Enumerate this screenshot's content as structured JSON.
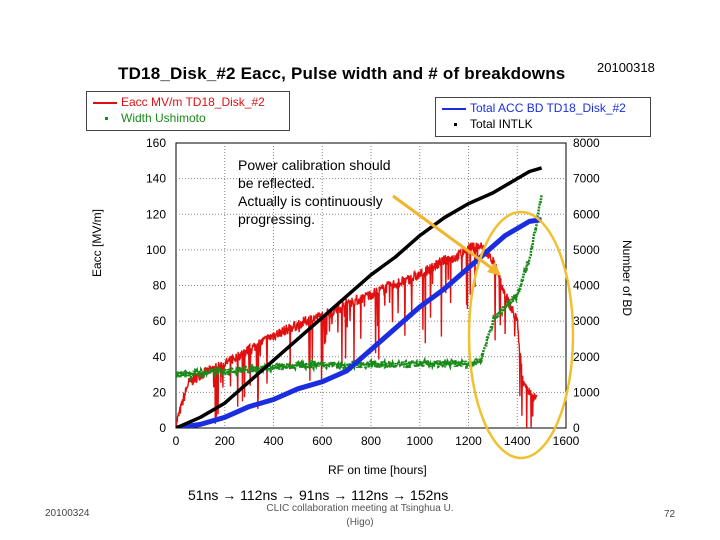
{
  "slide": {
    "title": "TD18_Disk_#2  Eacc, Pulse width and # of breakdowns",
    "date_stamp": "20100318",
    "note": "Power calibration should\nbe reflected.\nActually is continuously\nprogressing.",
    "pulse_sequence": "51ns    →    112ns → 91ns → 112ns → 152ns",
    "footer_date": "20100324",
    "footer_center": "CLIC collaboration meeting at Tsinghua U. (Higo)",
    "page_number": "72"
  },
  "chart_data": {
    "type": "scatter",
    "xlabel": "RF on time [hours]",
    "ylabel_left": "Eacc [MV/m]",
    "ylabel_right": "Number of BD",
    "xlim": [
      0,
      1600
    ],
    "ylim_left": [
      0,
      160
    ],
    "ylim_right": [
      0,
      8000
    ],
    "x_ticks": [
      "0",
      "200",
      "400",
      "600",
      "800",
      "1000",
      "1200",
      "1400",
      "1600"
    ],
    "y_ticks_left": [
      "0",
      "20",
      "40",
      "60",
      "80",
      "100",
      "120",
      "140",
      "160"
    ],
    "y_ticks_right": [
      "0",
      "1000",
      "2000",
      "3000",
      "4000",
      "5000",
      "6000",
      "7000",
      "8000"
    ],
    "grid": true,
    "legend_left": [
      {
        "name": "Eacc MV/m  TD18_Disk_#2",
        "color": "#e01010"
      },
      {
        "name": "Width Ushimoto",
        "color": "#1a8a1a"
      }
    ],
    "legend_right": [
      {
        "name": "Total ACC BD TD18_Disk_#2",
        "color": "#1a2ee0"
      },
      {
        "name": "Total INTLK",
        "color": "#000000"
      }
    ],
    "series": [
      {
        "name": "Eacc MV/m  TD18_Disk_#2",
        "axis": "left",
        "color": "#e01010",
        "x": [
          0,
          50,
          100,
          150,
          200,
          250,
          300,
          350,
          400,
          450,
          500,
          550,
          600,
          650,
          700,
          750,
          800,
          850,
          900,
          950,
          1000,
          1050,
          1100,
          1150,
          1200,
          1250,
          1300,
          1350,
          1400,
          1420,
          1440,
          1460,
          1480
        ],
        "y": [
          2,
          25,
          30,
          33,
          36,
          40,
          44,
          48,
          52,
          55,
          58,
          61,
          63,
          66,
          70,
          72,
          75,
          78,
          81,
          83,
          86,
          90,
          94,
          96,
          101,
          102,
          94,
          75,
          60,
          30,
          22,
          18,
          16
        ]
      },
      {
        "name": "Width Ushimoto",
        "axis": "left",
        "color": "#1a8a1a",
        "x": [
          0,
          100,
          200,
          300,
          400,
          500,
          600,
          700,
          800,
          900,
          1000,
          1100,
          1200,
          1250,
          1300,
          1350,
          1400,
          1450,
          1500
        ],
        "y": [
          30,
          31,
          32,
          33,
          34,
          35,
          36,
          35,
          36,
          35,
          36,
          36,
          36,
          38,
          60,
          68,
          75,
          95,
          130
        ]
      },
      {
        "name": "Total ACC BD TD18_Disk_#2",
        "axis": "right",
        "color": "#1a2ee0",
        "x": [
          0,
          100,
          200,
          300,
          400,
          500,
          600,
          700,
          800,
          900,
          1000,
          1100,
          1200,
          1300,
          1350,
          1400,
          1450,
          1500
        ],
        "y": [
          0,
          100,
          300,
          600,
          800,
          1100,
          1300,
          1600,
          2200,
          2800,
          3400,
          3900,
          4500,
          5100,
          5400,
          5600,
          5800,
          5850
        ]
      },
      {
        "name": "Total INTLK",
        "axis": "right",
        "color": "#000000",
        "x": [
          0,
          100,
          200,
          300,
          400,
          500,
          600,
          700,
          800,
          900,
          1000,
          1100,
          1200,
          1300,
          1400,
          1450,
          1500
        ],
        "y": [
          0,
          300,
          700,
          1300,
          1900,
          2500,
          3100,
          3700,
          4300,
          4800,
          5400,
          5900,
          6300,
          6600,
          7000,
          7200,
          7300
        ]
      }
    ]
  }
}
